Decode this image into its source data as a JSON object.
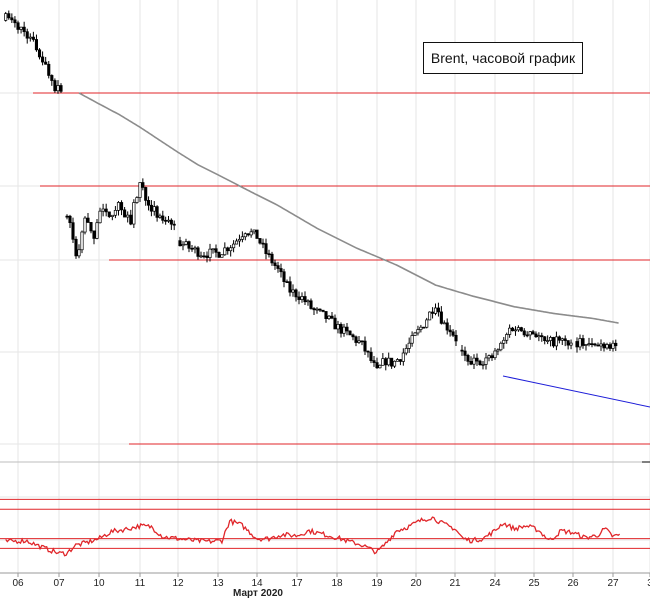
{
  "chart_data": [
    {
      "type": "candlestick",
      "title": "Brent, часовой график",
      "x_tick_labels": [
        "06",
        "07",
        "10",
        "11",
        "12",
        "13",
        "14",
        "17",
        "18",
        "19",
        "20",
        "21",
        "24",
        "25",
        "26",
        "27",
        "3"
      ],
      "x_month_label": "Март 2020",
      "colors": {
        "candles": "#000000",
        "levels": "#e0262a",
        "moving_average": "#8c8c8c",
        "trendline": "#1d1dd8",
        "grid": "#e6e6e6"
      },
      "moving_average_anchors": [
        {
          "t": 1.5,
          "p": 1.0
        },
        {
          "t": 2.5,
          "p": 0.87
        },
        {
          "t": 3.5,
          "p": 0.72
        },
        {
          "t": 4.5,
          "p": 0.57
        },
        {
          "t": 5.5,
          "p": 0.45
        },
        {
          "t": 6.5,
          "p": 0.33
        },
        {
          "t": 7.5,
          "p": 0.19
        },
        {
          "t": 8.5,
          "p": 0.07
        },
        {
          "t": 9.5,
          "p": -0.03
        },
        {
          "t": 10.5,
          "p": -0.15
        },
        {
          "t": 11.5,
          "p": -0.22
        },
        {
          "t": 12.5,
          "p": -0.28
        },
        {
          "t": 13.5,
          "p": -0.32
        },
        {
          "t": 14.5,
          "p": -0.35
        },
        {
          "t": 15.2,
          "p": -0.38
        }
      ],
      "price_anchors": [
        {
          "t": -0.3,
          "p": 1.45
        },
        {
          "t": 0.2,
          "p": 1.36
        },
        {
          "t": 0.5,
          "p": 1.25
        },
        {
          "t": 0.9,
          "p": 1.04
        },
        {
          "t": 1.05,
          "p": 1.03
        },
        {
          "t": 1.15,
          "p": 0.3
        },
        {
          "t": 1.3,
          "p": 0.2
        },
        {
          "t": 1.45,
          "p": -0.02
        },
        {
          "t": 1.65,
          "p": 0.26
        },
        {
          "t": 1.85,
          "p": 0.12
        },
        {
          "t": 2.0,
          "p": 0.3
        },
        {
          "t": 2.2,
          "p": 0.26
        },
        {
          "t": 2.5,
          "p": 0.34
        },
        {
          "t": 2.75,
          "p": 0.22
        },
        {
          "t": 3.0,
          "p": 0.46
        },
        {
          "t": 3.2,
          "p": 0.36
        },
        {
          "t": 3.5,
          "p": 0.24
        },
        {
          "t": 3.8,
          "p": 0.25
        },
        {
          "t": 4.0,
          "p": 0.11
        },
        {
          "t": 4.3,
          "p": 0.07
        },
        {
          "t": 4.6,
          "p": 0.04
        },
        {
          "t": 5.0,
          "p": 0.04
        },
        {
          "t": 5.4,
          "p": 0.1
        },
        {
          "t": 5.7,
          "p": 0.18
        },
        {
          "t": 6.0,
          "p": 0.14
        },
        {
          "t": 6.2,
          "p": 0.05
        },
        {
          "t": 6.5,
          "p": -0.05
        },
        {
          "t": 6.8,
          "p": -0.18
        },
        {
          "t": 7.1,
          "p": -0.22
        },
        {
          "t": 7.4,
          "p": -0.3
        },
        {
          "t": 7.7,
          "p": -0.34
        },
        {
          "t": 8.0,
          "p": -0.4
        },
        {
          "t": 8.3,
          "p": -0.45
        },
        {
          "t": 8.6,
          "p": -0.5
        },
        {
          "t": 8.8,
          "p": -0.58
        },
        {
          "t": 9.0,
          "p": -0.67
        },
        {
          "t": 9.2,
          "p": -0.6
        },
        {
          "t": 9.4,
          "p": -0.62
        },
        {
          "t": 9.6,
          "p": -0.58
        },
        {
          "t": 9.9,
          "p": -0.48
        },
        {
          "t": 10.2,
          "p": -0.38
        },
        {
          "t": 10.5,
          "p": -0.26
        },
        {
          "t": 10.7,
          "p": -0.38
        },
        {
          "t": 10.9,
          "p": -0.42
        },
        {
          "t": 11.1,
          "p": -0.5
        },
        {
          "t": 11.3,
          "p": -0.62
        },
        {
          "t": 11.6,
          "p": -0.6
        },
        {
          "t": 11.9,
          "p": -0.59
        },
        {
          "t": 12.2,
          "p": -0.5
        },
        {
          "t": 12.4,
          "p": -0.4
        },
        {
          "t": 12.7,
          "p": -0.42
        },
        {
          "t": 13.0,
          "p": -0.43
        },
        {
          "t": 13.3,
          "p": -0.5
        },
        {
          "t": 13.6,
          "p": -0.48
        },
        {
          "t": 13.9,
          "p": -0.5
        },
        {
          "t": 14.2,
          "p": -0.49
        },
        {
          "t": 14.5,
          "p": -0.52
        },
        {
          "t": 14.8,
          "p": -0.5
        },
        {
          "t": 15.1,
          "p": -0.51
        }
      ],
      "rsi_anchors": [
        {
          "t": -0.3,
          "v": 27
        },
        {
          "t": 0.2,
          "v": 28
        },
        {
          "t": 0.6,
          "v": 21
        },
        {
          "t": 1.0,
          "v": 15
        },
        {
          "t": 1.2,
          "v": 15
        },
        {
          "t": 1.4,
          "v": 23
        },
        {
          "t": 1.7,
          "v": 26
        },
        {
          "t": 2.0,
          "v": 30
        },
        {
          "t": 2.3,
          "v": 37
        },
        {
          "t": 2.7,
          "v": 40
        },
        {
          "t": 3.0,
          "v": 43
        },
        {
          "t": 3.3,
          "v": 42
        },
        {
          "t": 3.6,
          "v": 32
        },
        {
          "t": 4.0,
          "v": 30
        },
        {
          "t": 4.4,
          "v": 28
        },
        {
          "t": 4.8,
          "v": 27
        },
        {
          "t": 5.1,
          "v": 28
        },
        {
          "t": 5.3,
          "v": 48
        },
        {
          "t": 5.6,
          "v": 44
        },
        {
          "t": 6.0,
          "v": 30
        },
        {
          "t": 6.3,
          "v": 30
        },
        {
          "t": 6.6,
          "v": 34
        },
        {
          "t": 7.0,
          "v": 33
        },
        {
          "t": 7.3,
          "v": 38
        },
        {
          "t": 7.6,
          "v": 35
        },
        {
          "t": 8.0,
          "v": 31
        },
        {
          "t": 8.3,
          "v": 27
        },
        {
          "t": 8.6,
          "v": 24
        },
        {
          "t": 8.8,
          "v": 20
        },
        {
          "t": 9.0,
          "v": 16
        },
        {
          "t": 9.2,
          "v": 24
        },
        {
          "t": 9.5,
          "v": 38
        },
        {
          "t": 9.8,
          "v": 42
        },
        {
          "t": 10.1,
          "v": 48
        },
        {
          "t": 10.4,
          "v": 52
        },
        {
          "t": 10.7,
          "v": 45
        },
        {
          "t": 11.0,
          "v": 40
        },
        {
          "t": 11.2,
          "v": 30
        },
        {
          "t": 11.4,
          "v": 28
        },
        {
          "t": 11.7,
          "v": 30
        },
        {
          "t": 12.0,
          "v": 38
        },
        {
          "t": 12.2,
          "v": 46
        },
        {
          "t": 12.5,
          "v": 40
        },
        {
          "t": 12.8,
          "v": 43
        },
        {
          "t": 13.1,
          "v": 39
        },
        {
          "t": 13.4,
          "v": 28
        },
        {
          "t": 13.7,
          "v": 38
        },
        {
          "t": 14.0,
          "v": 36
        },
        {
          "t": 14.3,
          "v": 31
        },
        {
          "t": 14.6,
          "v": 33
        },
        {
          "t": 14.8,
          "v": 40
        },
        {
          "t": 15.0,
          "v": 32
        },
        {
          "t": 15.2,
          "v": 34
        }
      ],
      "candle_gaps": [
        [
          1.05,
          1.15
        ],
        [
          3.95,
          4.05
        ],
        [
          11.05,
          11.15
        ],
        [
          13.95,
          14.05
        ]
      ],
      "rsi_levels": [
        70,
        60,
        30,
        20
      ],
      "rsi_range": [
        0,
        100
      ],
      "grid": true
    }
  ]
}
